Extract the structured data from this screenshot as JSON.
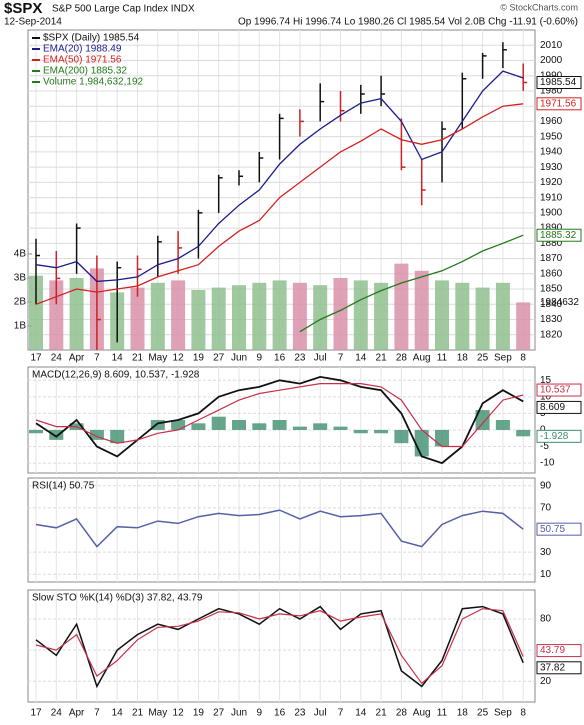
{
  "header": {
    "symbol": "$SPX",
    "name": "S&P 500 Large Cap Index INDX",
    "date": "12-Sep-2014",
    "quote": "Op 1996.74 Hi 1996.74 Lo 1980.26 Cl 1985.54 Vol 2.0B Chg -11.91 (-0.60%)",
    "credit": "© StockCharts.com"
  },
  "chart_data": [
    {
      "type": "ohlc",
      "categories": [
        "17",
        "24",
        "Apr",
        "7",
        "14",
        "21",
        "May",
        "12",
        "19",
        "27",
        "Jun",
        "9",
        "16",
        "23",
        "Jul",
        "7",
        "14",
        "21",
        "28",
        "Aug",
        "11",
        "18",
        "25",
        "Sep",
        "8"
      ],
      "price": {
        "name": "$SPX (Daily) 1985.54",
        "color": "#111111",
        "down_color": "#cc2222",
        "high": [
          1883,
          1875,
          1893,
          1872,
          1868,
          1872,
          1885,
          1888,
          1902,
          1925,
          1928,
          1940,
          1965,
          1968,
          1985,
          1980,
          1984,
          1990,
          1962,
          1935,
          1960,
          1992,
          2005,
          2012,
          1998
        ],
        "low": [
          1840,
          1840,
          1860,
          1810,
          1815,
          1845,
          1858,
          1860,
          1870,
          1900,
          1918,
          1920,
          1935,
          1950,
          1960,
          1960,
          1965,
          1970,
          1928,
          1905,
          1920,
          1955,
          1988,
          1995,
          1980
        ],
        "close": [
          1872,
          1857,
          1890,
          1830,
          1864,
          1863,
          1881,
          1877,
          1900,
          1923,
          1924,
          1936,
          1962,
          1960,
          1973,
          1967,
          1978,
          1978,
          1930,
          1915,
          1955,
          1988,
          2003,
          2007,
          1985.54
        ]
      },
      "series": [
        {
          "name": "EMA(20) 1988.49",
          "color": "#1c1c8c",
          "values": [
            1866,
            1864,
            1868,
            1855,
            1856,
            1858,
            1866,
            1870,
            1878,
            1893,
            1905,
            1915,
            1932,
            1945,
            1955,
            1964,
            1972,
            1975,
            1960,
            1935,
            1940,
            1960,
            1980,
            1993,
            1988.49
          ]
        },
        {
          "name": "EMA(50) 1971.56",
          "color": "#d42020",
          "values": [
            1840,
            1845,
            1850,
            1848,
            1850,
            1852,
            1858,
            1862,
            1866,
            1878,
            1888,
            1895,
            1910,
            1920,
            1930,
            1940,
            1947,
            1955,
            1948,
            1945,
            1948,
            1955,
            1963,
            1970,
            1971.56
          ]
        },
        {
          "name": "EMA(200) 1885.32",
          "color": "#237a1c",
          "values": [
            null,
            null,
            null,
            null,
            null,
            null,
            null,
            null,
            null,
            null,
            null,
            null,
            null,
            1822,
            1830,
            1836,
            1843,
            1849,
            1854,
            1858,
            1862,
            1868,
            1875,
            1880,
            1885.32
          ]
        }
      ],
      "volume": {
        "name": "Volume 1,984,632,192",
        "color": "#8fbf8f",
        "down_color": "#d890a8",
        "last_label": "1984632",
        "values": [
          3100000000,
          2900000000,
          3000000000,
          3400000000,
          2400000000,
          2600000000,
          2800000000,
          2900000000,
          2500000000,
          2600000000,
          2700000000,
          2800000000,
          2900000000,
          2800000000,
          2700000000,
          3000000000,
          2900000000,
          2800000000,
          3600000000,
          3300000000,
          2900000000,
          2800000000,
          2600000000,
          2800000000,
          1984632192
        ],
        "yticks": [
          {
            "value": 1000000000,
            "label": "1B"
          },
          {
            "value": 2000000000,
            "label": "2B"
          },
          {
            "value": 3000000000,
            "label": "3B"
          },
          {
            "value": 4000000000,
            "label": "4B"
          }
        ]
      },
      "ylim": [
        1810,
        2020
      ],
      "yticks": [
        1820,
        1830,
        1840,
        1850,
        1860,
        1870,
        1880,
        1890,
        1900,
        1910,
        1920,
        1930,
        1940,
        1950,
        1960,
        1970,
        1980,
        1990,
        2000,
        2010
      ],
      "grid": true
    },
    {
      "type": "macd",
      "label": "MACD(12,26,9) 8.609, 10.537, -1.928",
      "series": [
        {
          "color": "#111111",
          "values": [
            2,
            -2,
            3,
            -5,
            -8,
            -3,
            2,
            3,
            5,
            10,
            12,
            13,
            15,
            14,
            16,
            15,
            13,
            12,
            5,
            -8,
            -10,
            -5,
            8,
            12,
            8.609
          ]
        },
        {
          "color": "#c8304a",
          "values": [
            3,
            1,
            1,
            -2,
            -4,
            -3,
            -1,
            0,
            3,
            6,
            9,
            11,
            12,
            13,
            14,
            14,
            14,
            13,
            9,
            0,
            -5,
            -5,
            2,
            9,
            10.537
          ]
        },
        {
          "color": "#3f8f6f",
          "type": "bar",
          "values": [
            -1,
            -3,
            2,
            -3,
            -4,
            0,
            3,
            3,
            2,
            4,
            3,
            2,
            3,
            1,
            2,
            1,
            -1,
            -1,
            -4,
            -8,
            -5,
            0,
            6,
            3,
            -1.928
          ]
        }
      ],
      "ylim": [
        -13,
        19
      ],
      "yticks": [
        -10,
        -5,
        0,
        5,
        10,
        15
      ],
      "grid": true
    },
    {
      "type": "line",
      "label": "RSI(14) 50.75",
      "series": [
        {
          "color": "#5560a8",
          "values": [
            55,
            52,
            60,
            35,
            53,
            52,
            58,
            56,
            62,
            65,
            63,
            64,
            68,
            60,
            67,
            62,
            63,
            65,
            40,
            35,
            55,
            63,
            67,
            65,
            50.75
          ]
        }
      ],
      "ylim": [
        3,
        97
      ],
      "yticks": [
        10,
        30,
        70,
        90
      ],
      "grid": true
    },
    {
      "type": "line",
      "label": "Slow STO %K(14) %D(3) 37.82, 43.79",
      "series": [
        {
          "color": "#111111",
          "values": [
            60,
            45,
            75,
            15,
            50,
            65,
            75,
            70,
            80,
            90,
            85,
            75,
            90,
            80,
            92,
            70,
            85,
            88,
            30,
            15,
            40,
            90,
            92,
            85,
            37.82
          ]
        },
        {
          "color": "#c8304a",
          "values": [
            55,
            50,
            65,
            25,
            40,
            60,
            72,
            73,
            78,
            87,
            86,
            80,
            85,
            83,
            88,
            78,
            82,
            85,
            45,
            18,
            35,
            80,
            90,
            88,
            43.79
          ]
        }
      ],
      "ylim": [
        0,
        108
      ],
      "yticks": [
        20,
        50,
        80
      ],
      "grid": true
    }
  ]
}
